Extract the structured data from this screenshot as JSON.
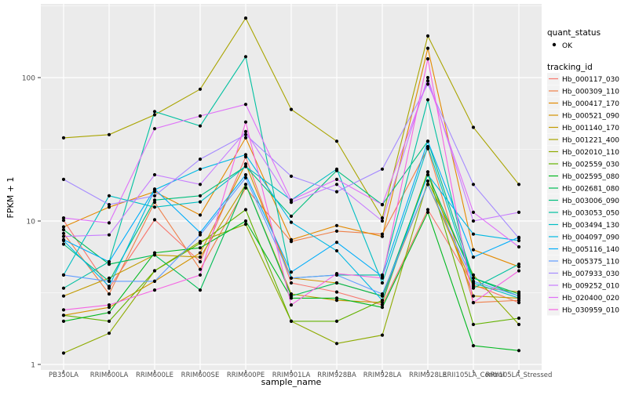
{
  "chart_data": {
    "type": "line",
    "xlabel": "sample_name",
    "ylabel": "FPKM + 1",
    "y_scale": "log10",
    "ylim": [
      1,
      270
    ],
    "y_ticks": [
      1,
      10,
      100
    ],
    "y_tick_labels": [
      "1",
      "10",
      "100"
    ],
    "grid": true,
    "panel_background": "#ebebeb",
    "grid_color": "#ffffff",
    "point_color": "#000000",
    "categories": [
      "PB350LA",
      "RRIM600LA",
      "RRIM600LE",
      "RRIM600SE",
      "RRIM600PE",
      "RRIM901LA",
      "RRIM928BA",
      "RRIM928LA",
      "RRIM928LE",
      "RRII105LA_Control",
      "RRII105LA_Stressed"
    ],
    "category_labels": [
      "PB350LA",
      "RRIM600LA",
      "RRIM600LE",
      "RRIM600SE",
      "RRIM600PE",
      "RRIM901LA",
      "RRIM928BA",
      "RRIM928LA",
      "RRIM928LE",
      "RRII105LA_Control",
      "RRII105LA_Stressed"
    ],
    "legend": {
      "placement": "right",
      "quant_title": "quant_status",
      "quant_label": "OK",
      "tracking_title": "tracking_id"
    },
    "series": [
      {
        "name": "Hb_000117_030",
        "color": "#F8766D",
        "values": [
          10.1,
          3.4,
          10.2,
          5.2,
          28,
          3.7,
          3.2,
          2.6,
          12,
          3.6,
          2.7
        ]
      },
      {
        "name": "Hb_000309_110",
        "color": "#EF7F49",
        "values": [
          8.2,
          3.1,
          13.5,
          4.6,
          17,
          7.2,
          8.5,
          8.1,
          32,
          2.7,
          2.8
        ]
      },
      {
        "name": "Hb_000417_170",
        "color": "#E38900",
        "values": [
          9.1,
          12.5,
          16,
          11,
          38,
          7.4,
          9.3,
          7.8,
          160,
          6.3,
          4.8
        ]
      },
      {
        "name": "Hb_000521_090",
        "color": "#D39200",
        "values": [
          2.2,
          2.5,
          3.8,
          6.0,
          25,
          4.0,
          3.7,
          3.0,
          18,
          3.5,
          3.2
        ]
      },
      {
        "name": "Hb_001140_170",
        "color": "#C19A00",
        "values": [
          3.0,
          4.0,
          5.8,
          5.6,
          18,
          3.1,
          2.8,
          2.7,
          22,
          3.0,
          2.9
        ]
      },
      {
        "name": "Hb_001221_400",
        "color": "#A9A400",
        "values": [
          38,
          40,
          55,
          83,
          260,
          60,
          36,
          10.5,
          195,
          45,
          18
        ]
      },
      {
        "name": "Hb_002010_110",
        "color": "#8EAB00",
        "values": [
          1.2,
          1.65,
          4.5,
          7.2,
          9.5,
          2.0,
          1.4,
          1.6,
          19,
          4.2,
          1.9
        ]
      },
      {
        "name": "Hb_002559_030",
        "color": "#64B200",
        "values": [
          2.2,
          2.0,
          4.5,
          7.0,
          12,
          2.0,
          2.0,
          2.8,
          22,
          1.9,
          2.1
        ]
      },
      {
        "name": "Hb_002595_080",
        "color": "#00B81F",
        "values": [
          2.0,
          2.3,
          6.0,
          6.5,
          10,
          2.9,
          2.9,
          2.5,
          11.5,
          1.35,
          1.25
        ]
      },
      {
        "name": "Hb_002681_080",
        "color": "#00BC56",
        "values": [
          8.7,
          5.0,
          5.8,
          3.3,
          18,
          3.0,
          3.7,
          3.0,
          21,
          4.0,
          3.1
        ]
      },
      {
        "name": "Hb_003006_090",
        "color": "#00BF7D",
        "values": [
          6.9,
          3.8,
          14,
          15,
          24,
          10.8,
          22.5,
          13,
          36,
          4.0,
          3.0
        ]
      },
      {
        "name": "Hb_003053_050",
        "color": "#00C0A0",
        "values": [
          3.4,
          5.2,
          58,
          46,
          140,
          4.0,
          4.2,
          4.2,
          70,
          3.4,
          5.0
        ]
      },
      {
        "name": "Hb_003494_130",
        "color": "#00BEC3",
        "values": [
          4.2,
          15,
          12.5,
          13.6,
          24,
          14,
          23,
          3.7,
          33,
          3.7,
          2.9
        ]
      },
      {
        "name": "Hb_004097_090",
        "color": "#00B8E3",
        "values": [
          7.3,
          3.5,
          16.5,
          23,
          29,
          9.8,
          6.2,
          2.8,
          21,
          8.1,
          7.3
        ]
      },
      {
        "name": "Hb_005116_140",
        "color": "#00ADFA",
        "values": [
          7.4,
          5.2,
          16.7,
          8.3,
          21,
          4.4,
          7.1,
          4.1,
          36,
          5.6,
          7.7
        ]
      },
      {
        "name": "Hb_005375_110",
        "color": "#619CFF",
        "values": [
          4.2,
          3.8,
          3.8,
          8.0,
          20,
          4.0,
          4.2,
          3.1,
          18,
          3.8,
          3.0
        ]
      },
      {
        "name": "Hb_007933_030",
        "color": "#A58AFF",
        "values": [
          19.5,
          13,
          15,
          27,
          40,
          20.5,
          16,
          23,
          90,
          18,
          7.6
        ]
      },
      {
        "name": "Hb_009252_010",
        "color": "#C77CFF",
        "values": [
          7.8,
          8.0,
          21,
          18,
          42,
          13.5,
          18,
          10,
          100,
          10,
          11.5
        ]
      },
      {
        "name": "Hb_020400_020",
        "color": "#DF70F8",
        "values": [
          10.5,
          9.7,
          44,
          54,
          65,
          14,
          19.5,
          13,
          95,
          11.5,
          6.6
        ]
      },
      {
        "name": "Hb_030959_010",
        "color": "#F564E3",
        "values": [
          2.4,
          2.6,
          3.3,
          4.2,
          49,
          2.6,
          4.3,
          4.0,
          135,
          2.7,
          4.5
        ]
      }
    ]
  }
}
